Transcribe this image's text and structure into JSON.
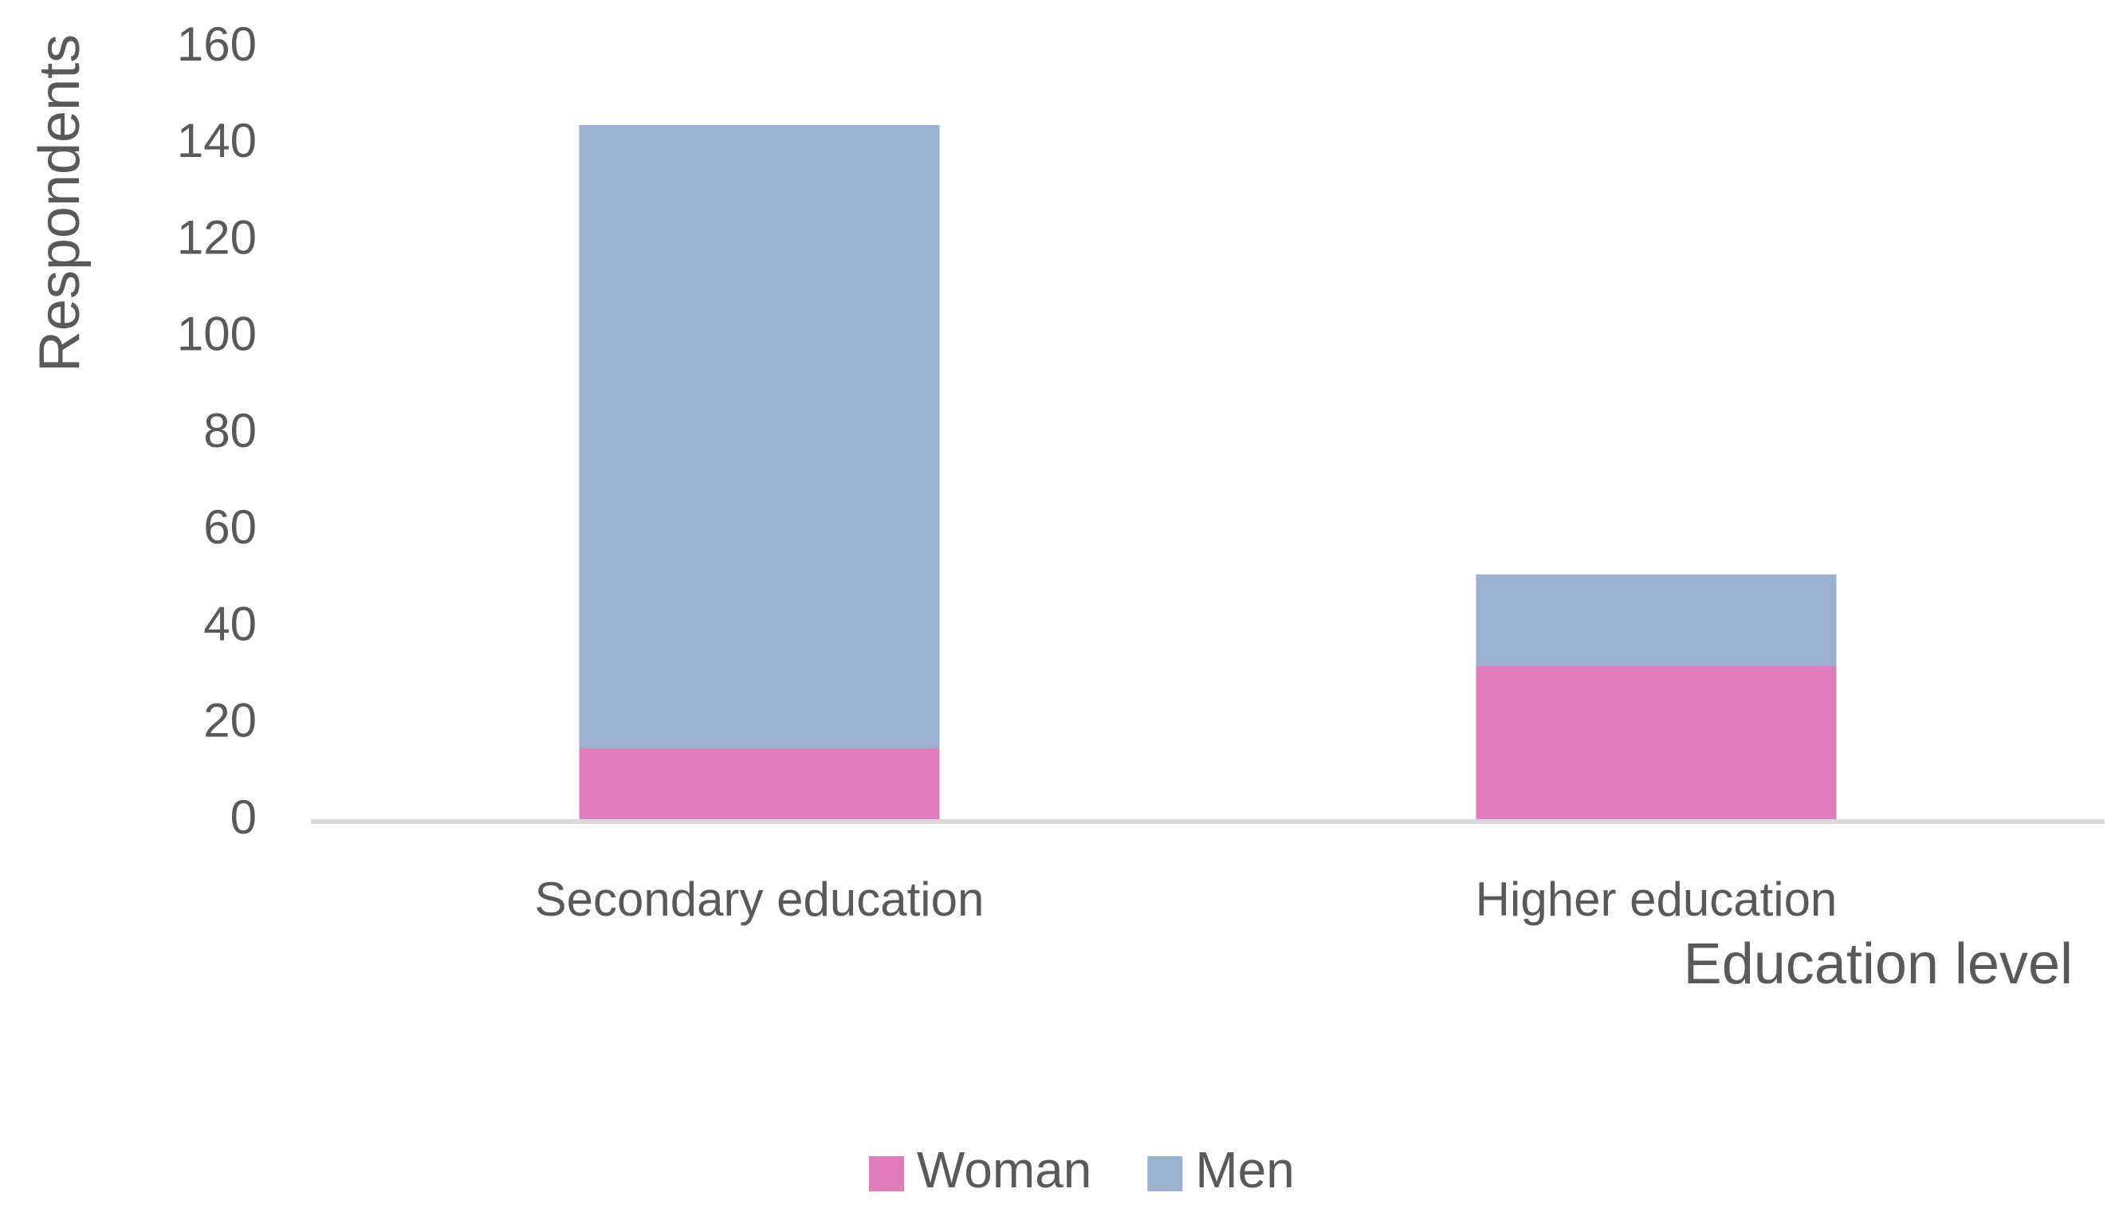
{
  "chart_data": {
    "type": "bar",
    "stacked": true,
    "categories": [
      "Secondary education",
      "Higher education"
    ],
    "series": [
      {
        "name": "Woman",
        "values": [
          15,
          32
        ],
        "color": "#DE7DBA"
      },
      {
        "name": "Men",
        "values": [
          129,
          19
        ],
        "color": "#9CAFCE"
      }
    ],
    "title": "",
    "xlabel": "Education level",
    "ylabel": "Respondents",
    "ylim": [
      0,
      160
    ],
    "yticks": [
      0,
      20,
      40,
      60,
      80,
      100,
      120,
      140,
      160
    ],
    "grid": false,
    "legend": "bottom-center",
    "axis_color": "#D9D9D9",
    "text_color": "#595959"
  }
}
